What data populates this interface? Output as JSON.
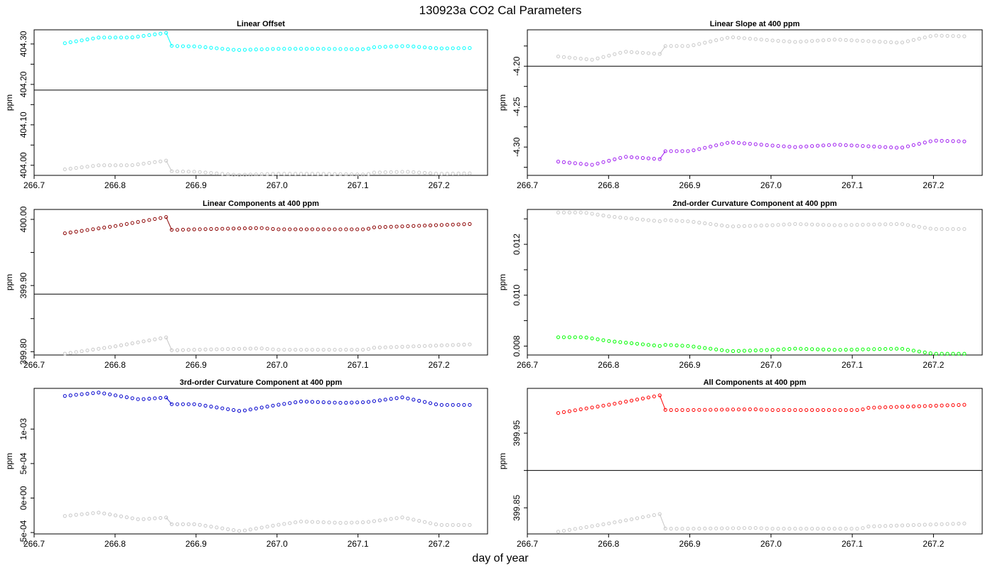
{
  "figure": {
    "title": "130923a   CO2 Cal Parameters",
    "xlabel": "day of year",
    "colors": {
      "background": "#ffffff",
      "axis": "#000000",
      "reference_series": "#c8c8c8",
      "reference_line": "#000000"
    }
  },
  "chart_data": [
    {
      "type": "scatter",
      "title": "Linear Offset",
      "ylabel": "ppm",
      "xlim": [
        266.7,
        267.26
      ],
      "ylim": [
        403.975,
        404.335
      ],
      "xticks": [
        266.7,
        266.8,
        266.9,
        267.0,
        267.1,
        267.2
      ],
      "xtick_labels": [
        "266.7",
        "266.8",
        "266.9",
        "267.0",
        "267.1",
        "267.2"
      ],
      "yticks": [
        404.0,
        404.1,
        404.2,
        404.3
      ],
      "ytick_labels": [
        "404.00",
        "404.10",
        "404.20",
        "404.30"
      ],
      "yminor": [
        404.05,
        404.15,
        404.25
      ],
      "hline": 404.186,
      "x_range": [
        266.738,
        267.238
      ],
      "break_after_x": 266.865,
      "primary": {
        "color": "#00ffff",
        "knots": [
          [
            266.738,
            404.302
          ],
          [
            266.78,
            404.316
          ],
          [
            266.82,
            404.316
          ],
          [
            266.865,
            404.328
          ],
          [
            266.87,
            404.295
          ],
          [
            266.9,
            404.294
          ],
          [
            266.95,
            404.285
          ],
          [
            267.0,
            404.288
          ],
          [
            267.05,
            404.288
          ],
          [
            267.11,
            404.287
          ],
          [
            267.12,
            404.292
          ],
          [
            267.16,
            404.295
          ],
          [
            267.2,
            404.289
          ],
          [
            267.238,
            404.29
          ]
        ]
      },
      "reference": {
        "color": "#c8c8c8",
        "knots": [
          [
            266.738,
            403.99
          ],
          [
            266.78,
            404.0
          ],
          [
            266.82,
            404.0
          ],
          [
            266.865,
            404.012
          ],
          [
            266.87,
            403.985
          ],
          [
            266.9,
            403.984
          ],
          [
            266.95,
            403.976
          ],
          [
            267.0,
            403.979
          ],
          [
            267.05,
            403.979
          ],
          [
            267.11,
            403.977
          ],
          [
            267.12,
            403.982
          ],
          [
            267.16,
            403.984
          ],
          [
            267.2,
            403.979
          ],
          [
            267.238,
            403.98
          ]
        ]
      }
    },
    {
      "type": "scatter",
      "title": "Linear Slope at 400 ppm",
      "ylabel": "ppm",
      "xlim": [
        266.7,
        267.26
      ],
      "ylim": [
        -4.335,
        -4.155
      ],
      "xticks": [
        266.7,
        266.8,
        266.9,
        267.0,
        267.1,
        267.2
      ],
      "xtick_labels": [
        "266.7",
        "266.8",
        "266.9",
        "267.0",
        "267.1",
        "267.2"
      ],
      "yticks": [
        -4.3,
        -4.25,
        -4.2
      ],
      "ytick_labels": [
        "-4.30",
        "-4.25",
        "-4.20"
      ],
      "yminor": [
        -4.325,
        -4.275,
        -4.225,
        -4.175
      ],
      "hline": -4.2,
      "x_range": [
        266.738,
        267.238
      ],
      "break_after_x": 266.865,
      "primary": {
        "color": "#a020f0",
        "knots": [
          [
            266.738,
            -4.318
          ],
          [
            266.78,
            -4.322
          ],
          [
            266.82,
            -4.312
          ],
          [
            266.865,
            -4.315
          ],
          [
            266.87,
            -4.305
          ],
          [
            266.9,
            -4.305
          ],
          [
            266.95,
            -4.294
          ],
          [
            267.0,
            -4.298
          ],
          [
            267.03,
            -4.3
          ],
          [
            267.08,
            -4.297
          ],
          [
            267.12,
            -4.299
          ],
          [
            267.16,
            -4.301
          ],
          [
            267.2,
            -4.292
          ],
          [
            267.238,
            -4.293
          ]
        ]
      },
      "reference": {
        "color": "#c8c8c8",
        "knots": [
          [
            266.738,
            -4.188
          ],
          [
            266.78,
            -4.192
          ],
          [
            266.82,
            -4.182
          ],
          [
            266.865,
            -4.185
          ],
          [
            266.87,
            -4.175
          ],
          [
            266.9,
            -4.175
          ],
          [
            266.95,
            -4.164
          ],
          [
            267.0,
            -4.168
          ],
          [
            267.03,
            -4.17
          ],
          [
            267.08,
            -4.167
          ],
          [
            267.12,
            -4.169
          ],
          [
            267.16,
            -4.171
          ],
          [
            267.2,
            -4.162
          ],
          [
            267.238,
            -4.163
          ]
        ]
      }
    },
    {
      "type": "scatter",
      "title": "Linear Components at 400 ppm",
      "ylabel": "ppm",
      "xlim": [
        266.7,
        267.26
      ],
      "ylim": [
        399.795,
        400.015
      ],
      "xticks": [
        266.7,
        266.8,
        266.9,
        267.0,
        267.1,
        267.2
      ],
      "xtick_labels": [
        "266.7",
        "266.8",
        "266.9",
        "267.0",
        "267.1",
        "267.2"
      ],
      "yticks": [
        399.8,
        399.9,
        400.0
      ],
      "ytick_labels": [
        "399.80",
        "399.90",
        "400.00"
      ],
      "yminor": [
        399.85,
        399.95
      ],
      "hline": 399.887,
      "x_range": [
        266.738,
        267.238
      ],
      "break_after_x": 266.865,
      "primary": {
        "color": "#8b0000",
        "knots": [
          [
            266.738,
            399.979
          ],
          [
            266.8,
            399.99
          ],
          [
            266.865,
            400.004
          ],
          [
            266.87,
            399.984
          ],
          [
            266.9,
            399.985
          ],
          [
            266.98,
            399.987
          ],
          [
            267.0,
            399.985
          ],
          [
            267.11,
            399.985
          ],
          [
            267.12,
            399.988
          ],
          [
            267.238,
            399.993
          ]
        ]
      },
      "reference": {
        "color": "#c8c8c8",
        "knots": [
          [
            266.738,
            399.797
          ],
          [
            266.8,
            399.808
          ],
          [
            266.865,
            399.822
          ],
          [
            266.87,
            399.802
          ],
          [
            266.9,
            399.803
          ],
          [
            266.98,
            399.805
          ],
          [
            267.0,
            399.803
          ],
          [
            267.11,
            399.803
          ],
          [
            267.12,
            399.806
          ],
          [
            267.238,
            399.811
          ]
        ]
      }
    },
    {
      "type": "scatter",
      "title": "2nd-order Curvature Component at 400 ppm",
      "ylabel": "ppm",
      "xlim": [
        266.7,
        267.26
      ],
      "ylim": [
        0.00765,
        0.01337
      ],
      "xticks": [
        266.7,
        266.8,
        266.9,
        267.0,
        267.1,
        267.2
      ],
      "xtick_labels": [
        "266.7",
        "266.8",
        "266.9",
        "267.0",
        "267.1",
        "267.2"
      ],
      "yticks": [
        0.008,
        0.01,
        0.012
      ],
      "ytick_labels": [
        "0.008",
        "0.010",
        "0.012"
      ],
      "yminor": [
        0.009,
        0.011,
        0.013
      ],
      "hline": null,
      "x_range": [
        266.738,
        267.238
      ],
      "break_after_x": null,
      "primary": {
        "color": "#00ff00",
        "knots": [
          [
            266.738,
            0.00835
          ],
          [
            266.77,
            0.00835
          ],
          [
            266.8,
            0.0082
          ],
          [
            266.865,
            0.008
          ],
          [
            266.87,
            0.00805
          ],
          [
            266.9,
            0.008
          ],
          [
            266.95,
            0.0078
          ],
          [
            267.0,
            0.00785
          ],
          [
            267.03,
            0.0079
          ],
          [
            267.08,
            0.00785
          ],
          [
            267.16,
            0.0079
          ],
          [
            267.2,
            0.0077
          ],
          [
            267.238,
            0.0077
          ]
        ]
      },
      "reference": {
        "color": "#c8c8c8",
        "knots": [
          [
            266.738,
            0.01325
          ],
          [
            266.77,
            0.01325
          ],
          [
            266.8,
            0.0131
          ],
          [
            266.865,
            0.0129
          ],
          [
            266.87,
            0.01295
          ],
          [
            266.9,
            0.0129
          ],
          [
            266.95,
            0.0127
          ],
          [
            267.0,
            0.01275
          ],
          [
            267.03,
            0.0128
          ],
          [
            267.08,
            0.01275
          ],
          [
            267.16,
            0.0128
          ],
          [
            267.2,
            0.0126
          ],
          [
            267.238,
            0.0126
          ]
        ]
      }
    },
    {
      "type": "scatter",
      "title": "3rd-order Curvature Component at 400 ppm",
      "ylabel": "ppm",
      "xlim": [
        266.7,
        267.26
      ],
      "ylim": [
        -0.00052,
        0.00159
      ],
      "xticks": [
        266.7,
        266.8,
        266.9,
        267.0,
        267.1,
        267.2
      ],
      "xtick_labels": [
        "266.7",
        "266.8",
        "266.9",
        "267.0",
        "267.1",
        "267.2"
      ],
      "yticks": [
        -0.0005,
        0.0,
        0.0005,
        0.001
      ],
      "ytick_labels": [
        "-5e-04",
        "0e+00",
        "5e-04",
        "1e-03"
      ],
      "yminor": [],
      "hline": null,
      "x_range": [
        266.738,
        267.238
      ],
      "break_after_x": 266.865,
      "primary": {
        "color": "#0000cd",
        "knots": [
          [
            266.738,
            0.00148
          ],
          [
            266.78,
            0.00153
          ],
          [
            266.83,
            0.00143
          ],
          [
            266.865,
            0.00146
          ],
          [
            266.87,
            0.00136
          ],
          [
            266.9,
            0.00136
          ],
          [
            266.955,
            0.00126
          ],
          [
            267.0,
            0.00135
          ],
          [
            267.03,
            0.0014
          ],
          [
            267.08,
            0.00138
          ],
          [
            267.11,
            0.00139
          ],
          [
            267.155,
            0.00146
          ],
          [
            267.2,
            0.00135
          ],
          [
            267.238,
            0.00135
          ]
        ]
      },
      "reference": {
        "color": "#c8c8c8",
        "knots": [
          [
            266.738,
            -0.00026
          ],
          [
            266.78,
            -0.00021
          ],
          [
            266.83,
            -0.00031
          ],
          [
            266.865,
            -0.00028
          ],
          [
            266.87,
            -0.00038
          ],
          [
            266.9,
            -0.00038
          ],
          [
            266.955,
            -0.00048
          ],
          [
            267.0,
            -0.00039
          ],
          [
            267.03,
            -0.00034
          ],
          [
            267.08,
            -0.00036
          ],
          [
            267.11,
            -0.00035
          ],
          [
            267.155,
            -0.00028
          ],
          [
            267.2,
            -0.00039
          ],
          [
            267.238,
            -0.00039
          ]
        ]
      }
    },
    {
      "type": "scatter",
      "title": "All Components at 400 ppm",
      "ylabel": "ppm",
      "xlim": [
        266.7,
        267.26
      ],
      "ylim": [
        399.815,
        400.01
      ],
      "xticks": [
        266.7,
        266.8,
        266.9,
        267.0,
        267.1,
        267.2
      ],
      "xtick_labels": [
        "266.7",
        "266.8",
        "266.9",
        "267.0",
        "267.1",
        "267.2"
      ],
      "yticks": [
        399.85,
        399.95
      ],
      "ytick_labels": [
        "399.85",
        "399.95"
      ],
      "yminor": [
        399.9
      ],
      "hline": 399.9,
      "x_range": [
        266.738,
        267.238
      ],
      "break_after_x": 266.865,
      "primary": {
        "color": "#ff0000",
        "knots": [
          [
            266.738,
            399.977
          ],
          [
            266.8,
            399.988
          ],
          [
            266.865,
            400.001
          ],
          [
            266.87,
            399.981
          ],
          [
            266.9,
            399.981
          ],
          [
            266.98,
            399.982
          ],
          [
            267.0,
            399.981
          ],
          [
            267.11,
            399.981
          ],
          [
            267.12,
            399.984
          ],
          [
            267.238,
            399.988
          ]
        ]
      },
      "reference": {
        "color": "#c8c8c8",
        "knots": [
          [
            266.738,
            399.818
          ],
          [
            266.8,
            399.829
          ],
          [
            266.865,
            399.842
          ],
          [
            266.87,
            399.822
          ],
          [
            266.9,
            399.822
          ],
          [
            266.98,
            399.823
          ],
          [
            267.0,
            399.822
          ],
          [
            267.11,
            399.822
          ],
          [
            267.12,
            399.825
          ],
          [
            267.238,
            399.829
          ]
        ]
      }
    }
  ]
}
